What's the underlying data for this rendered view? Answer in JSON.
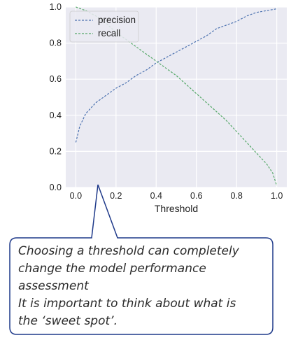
{
  "chart_data": {
    "type": "line",
    "title": "",
    "xlabel": "Threshold",
    "ylabel": "",
    "xlim": [
      -0.05,
      1.05
    ],
    "ylim": [
      0.0,
      1.0
    ],
    "x_ticks": [
      "0.0",
      "0.2",
      "0.4",
      "0.6",
      "0.8",
      "1.0"
    ],
    "y_ticks": [
      "0.0",
      "0.2",
      "0.4",
      "0.6",
      "0.8",
      "1.0"
    ],
    "grid": true,
    "legend_position": "top-left",
    "series": [
      {
        "name": "precision",
        "color": "#4c72b0",
        "style": "dashed",
        "x": [
          0.0,
          0.02,
          0.05,
          0.1,
          0.15,
          0.2,
          0.25,
          0.3,
          0.35,
          0.4,
          0.45,
          0.5,
          0.55,
          0.6,
          0.65,
          0.7,
          0.75,
          0.8,
          0.85,
          0.9,
          0.95,
          1.0
        ],
        "values": [
          0.25,
          0.34,
          0.41,
          0.47,
          0.51,
          0.55,
          0.58,
          0.62,
          0.65,
          0.69,
          0.72,
          0.75,
          0.78,
          0.81,
          0.84,
          0.88,
          0.9,
          0.92,
          0.95,
          0.97,
          0.98,
          0.99
        ]
      },
      {
        "name": "recall",
        "color": "#55a868",
        "style": "dashed",
        "x": [
          0.0,
          0.05,
          0.1,
          0.15,
          0.2,
          0.25,
          0.3,
          0.35,
          0.4,
          0.45,
          0.5,
          0.55,
          0.6,
          0.65,
          0.7,
          0.75,
          0.8,
          0.85,
          0.9,
          0.95,
          0.98,
          1.0
        ],
        "values": [
          1.0,
          0.98,
          0.95,
          0.91,
          0.86,
          0.82,
          0.78,
          0.74,
          0.7,
          0.66,
          0.62,
          0.57,
          0.52,
          0.47,
          0.42,
          0.37,
          0.31,
          0.25,
          0.19,
          0.13,
          0.08,
          0.01
        ]
      }
    ]
  },
  "callout": {
    "lines": [
      "Choosing a threshold can completely",
      "change the model performance",
      "assessment",
      "It is important to think about what is",
      "the ‘sweet spot’."
    ],
    "border_color": "#1f3a8a"
  },
  "colors": {
    "plot_background": "#eaeaf2",
    "grid": "#ffffff"
  }
}
